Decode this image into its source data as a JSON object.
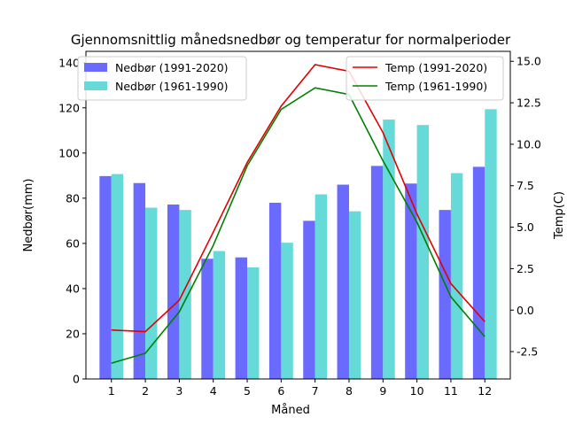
{
  "chart_data": {
    "type": "bar",
    "title": "Gjennomsnittlig månedsnedbør og temperatur for normalperioder",
    "xlabel": "Måned",
    "ylabel_left": "Nedbør(mm)",
    "ylabel_right": "Temp(C)",
    "categories": [
      "1",
      "2",
      "3",
      "4",
      "5",
      "6",
      "7",
      "8",
      "9",
      "10",
      "11",
      "12"
    ],
    "ylim_left": [
      0,
      145
    ],
    "yticks_left": [
      0,
      20,
      40,
      60,
      80,
      100,
      120,
      140
    ],
    "ylim_right": [
      -4.15,
      15.6
    ],
    "yticks_right": [
      "-2.5",
      "0.0",
      "2.5",
      "5.0",
      "7.5",
      "10.0",
      "12.5",
      "15.0"
    ],
    "bar_series": [
      {
        "name": "Nedbør (1991-2020)",
        "color": "#6a6aff",
        "values": [
          89.8,
          86.7,
          77.2,
          53.2,
          53.8,
          78.0,
          70.0,
          86.0,
          94.3,
          86.5,
          74.8,
          93.9
        ]
      },
      {
        "name": "Nedbør (1961-1990)",
        "color": "#66d9d9",
        "values": [
          90.7,
          75.8,
          74.8,
          56.6,
          49.4,
          60.3,
          81.7,
          74.2,
          114.8,
          112.4,
          91.1,
          119.4
        ]
      }
    ],
    "line_series": [
      {
        "name": "Temp (1991-2020)",
        "color": "#e00000",
        "values": [
          -1.2,
          -1.3,
          0.6,
          4.7,
          8.9,
          12.3,
          14.8,
          14.4,
          10.7,
          5.8,
          1.6,
          -0.7
        ]
      },
      {
        "name": "Temp (1961-1990)",
        "color": "#008000",
        "values": [
          -3.2,
          -2.6,
          -0.1,
          3.9,
          8.7,
          12.1,
          13.4,
          13.0,
          9.0,
          5.3,
          0.8,
          -1.6
        ]
      }
    ],
    "legend_left_placement": "top-left",
    "legend_right_placement": "top-right",
    "grid": false
  }
}
